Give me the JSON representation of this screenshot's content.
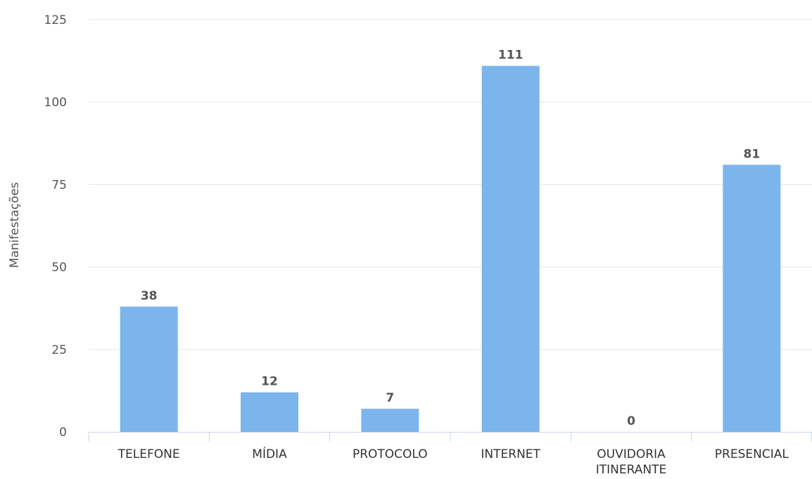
{
  "chart_data": {
    "type": "bar",
    "categories": [
      "TELEFONE",
      "MÍDIA",
      "PROTOCOLO",
      "INTERNET",
      "OUVIDORIA ITINERANTE",
      "PRESENCIAL"
    ],
    "category_lines": [
      [
        "TELEFONE"
      ],
      [
        "MÍDIA"
      ],
      [
        "PROTOCOLO"
      ],
      [
        "INTERNET"
      ],
      [
        "OUVIDORIA",
        "ITINERANTE"
      ],
      [
        "PRESENCIAL"
      ]
    ],
    "values": [
      38,
      12,
      7,
      111,
      0,
      81
    ],
    "title": "",
    "xlabel": "",
    "ylabel": "Manifestações",
    "ylim": [
      0,
      125
    ],
    "yticks": [
      0,
      25,
      50,
      75,
      100,
      125
    ],
    "grid": true,
    "data_labels": true,
    "bar_color": "#7cb5ec",
    "grid_color": "#e6e6e6",
    "axis_color": "#ccd6eb"
  }
}
